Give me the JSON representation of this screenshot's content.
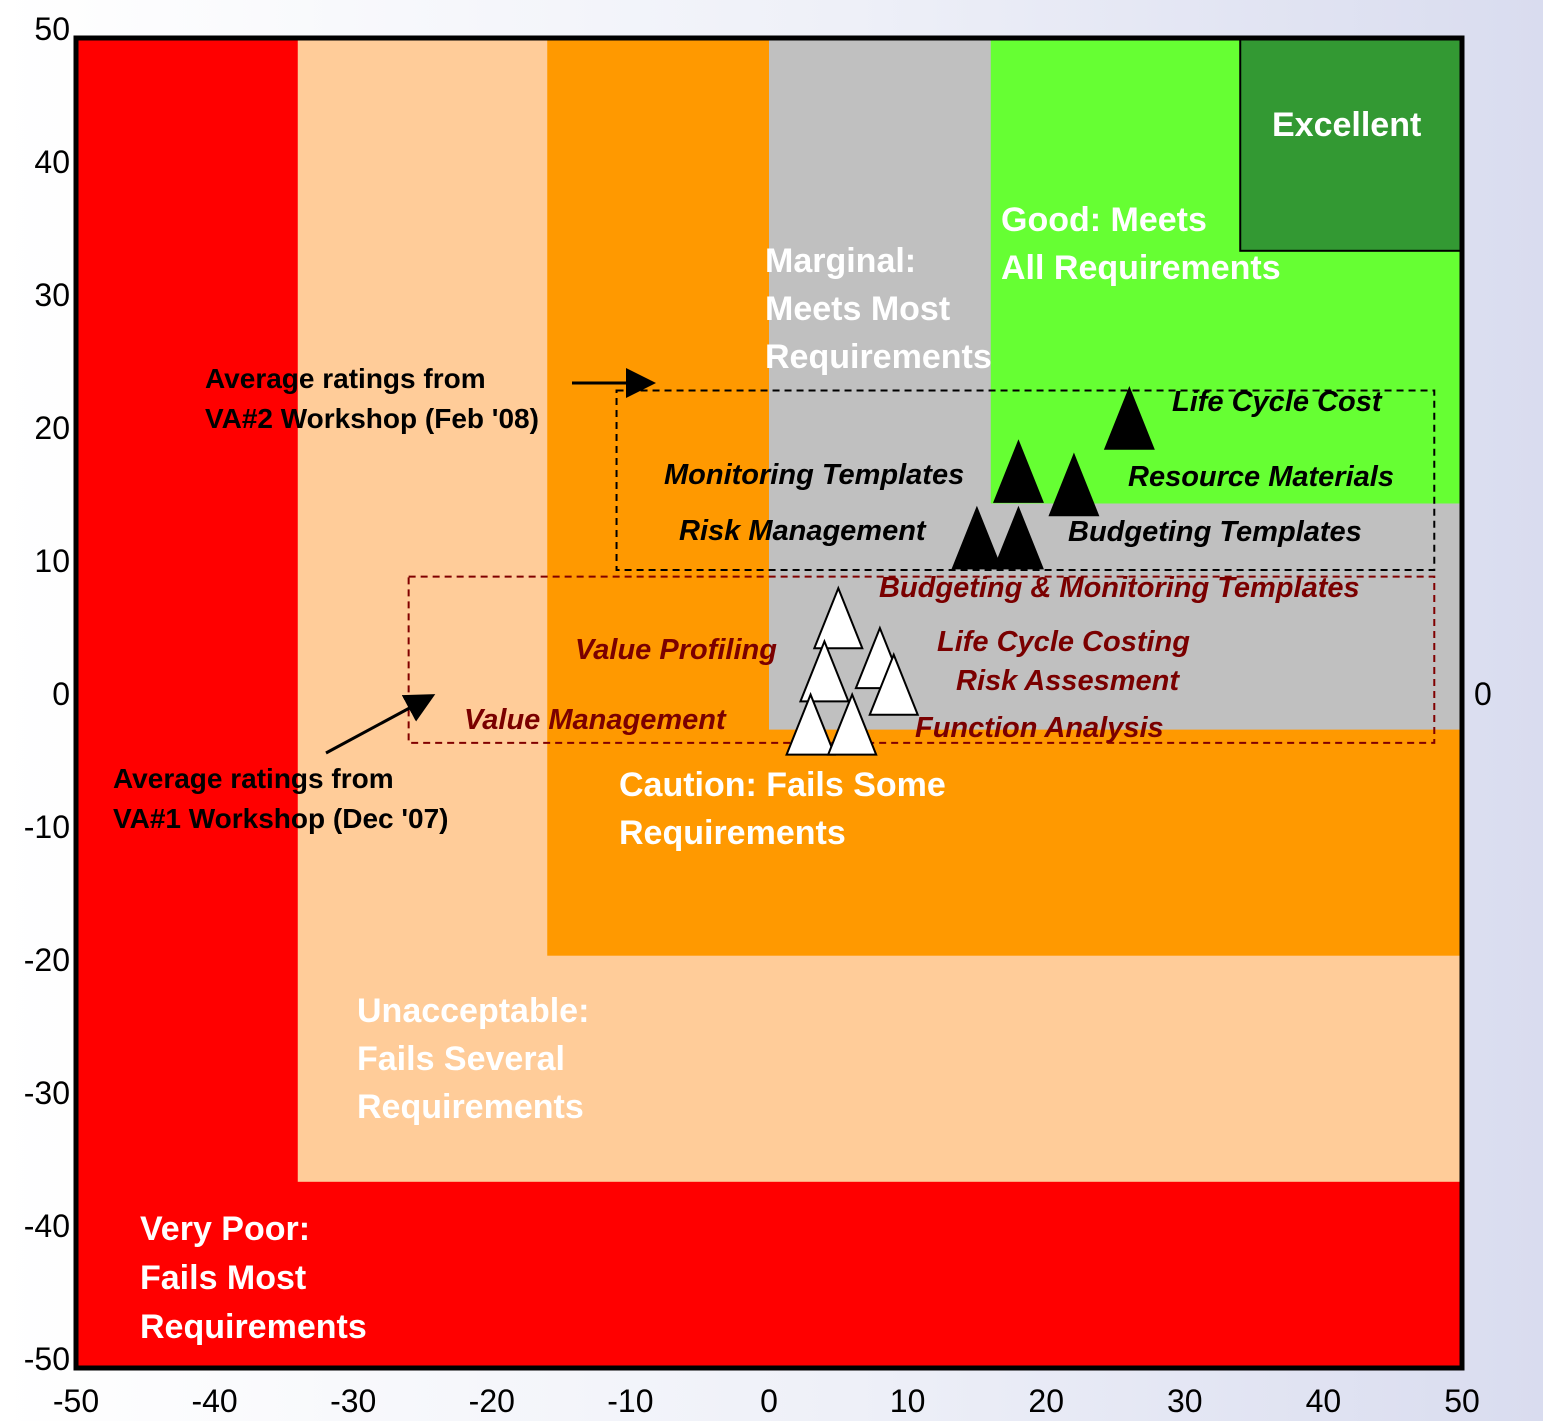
{
  "chart_data": {
    "type": "scatter",
    "xlim": [
      -50,
      50
    ],
    "ylim": [
      -50,
      50
    ],
    "x_ticks": [
      "-50",
      "-40",
      "-30",
      "-20",
      "-10",
      "0",
      "10",
      "20",
      "30",
      "40",
      "50"
    ],
    "y_ticks": [
      "50",
      "40",
      "30",
      "20",
      "10",
      "0",
      "-10",
      "-20",
      "-30",
      "-40",
      "-50"
    ],
    "right_axis_label": "0",
    "grid": false,
    "zones": [
      {
        "name": "very_poor",
        "color": "#ff0000",
        "x": [
          -50,
          50
        ],
        "y": [
          -50,
          50
        ],
        "label": [
          "Very Poor:",
          "Fails Most",
          "Requirements"
        ]
      },
      {
        "name": "unacceptable",
        "color": "#ffcc99",
        "x": [
          -34,
          50
        ],
        "y": [
          -36,
          50
        ],
        "label": [
          "Unacceptable:",
          "Fails Several",
          "Requirements"
        ]
      },
      {
        "name": "caution",
        "color": "#ff9900",
        "x": [
          -16,
          50
        ],
        "y": [
          -19,
          50
        ],
        "label": [
          "Caution: Fails Some",
          " Requirements"
        ]
      },
      {
        "name": "marginal",
        "color": "#c0c0c0",
        "x": [
          0,
          50
        ],
        "y": [
          -2,
          50
        ],
        "label": [
          "Marginal:",
          "Meets Most",
          "Requirements"
        ]
      },
      {
        "name": "good",
        "color": "#66ff33",
        "x": [
          16,
          50
        ],
        "y": [
          15,
          50
        ],
        "label": [
          "Good: Meets",
          "All Requirements"
        ]
      },
      {
        "name": "excellent",
        "color": "#339933",
        "x": [
          34,
          50
        ],
        "y": [
          34,
          50
        ],
        "label": [
          "Excellent"
        ]
      }
    ],
    "series": [
      {
        "name": "VA#2 Workshop (Feb '08)",
        "marker": "filled-triangle",
        "points": [
          {
            "label": "Life Cycle Cost",
            "x": 26,
            "y": 21
          },
          {
            "label": "Resource Materials",
            "x": 22,
            "y": 16
          },
          {
            "label": "Monitoring Templates",
            "x": 18,
            "y": 17
          },
          {
            "label": "Budgeting Templates",
            "x": 18,
            "y": 12
          },
          {
            "label": "Risk Management",
            "x": 15,
            "y": 12
          }
        ]
      },
      {
        "name": "VA#1 Workshop (Dec '07)",
        "marker": "open-triangle",
        "points": [
          {
            "label": "Budgeting & Monitoring Templates",
            "x": 5,
            "y": 6
          },
          {
            "label": "Life Cycle Costing",
            "x": 8,
            "y": 3
          },
          {
            "label": "Value Profiling",
            "x": 4,
            "y": 2
          },
          {
            "label": "Risk Assesment",
            "x": 9,
            "y": 1
          },
          {
            "label": "Value Management",
            "x": 3,
            "y": -2
          },
          {
            "label": "Function Analysis",
            "x": 6,
            "y": -2
          }
        ]
      }
    ],
    "annotations": [
      {
        "text": [
          "Average ratings from",
          "VA#2 Workshop (Feb '08)"
        ],
        "box_x": [
          -11,
          48
        ],
        "box_y": [
          10,
          23.5
        ],
        "box_color": "#000000"
      },
      {
        "text": [
          "Average ratings from",
          "VA#1 Workshop (Dec '07)"
        ],
        "box_x": [
          -26,
          48
        ],
        "box_y": [
          -3,
          9.5
        ],
        "box_color": "#800000"
      }
    ]
  }
}
